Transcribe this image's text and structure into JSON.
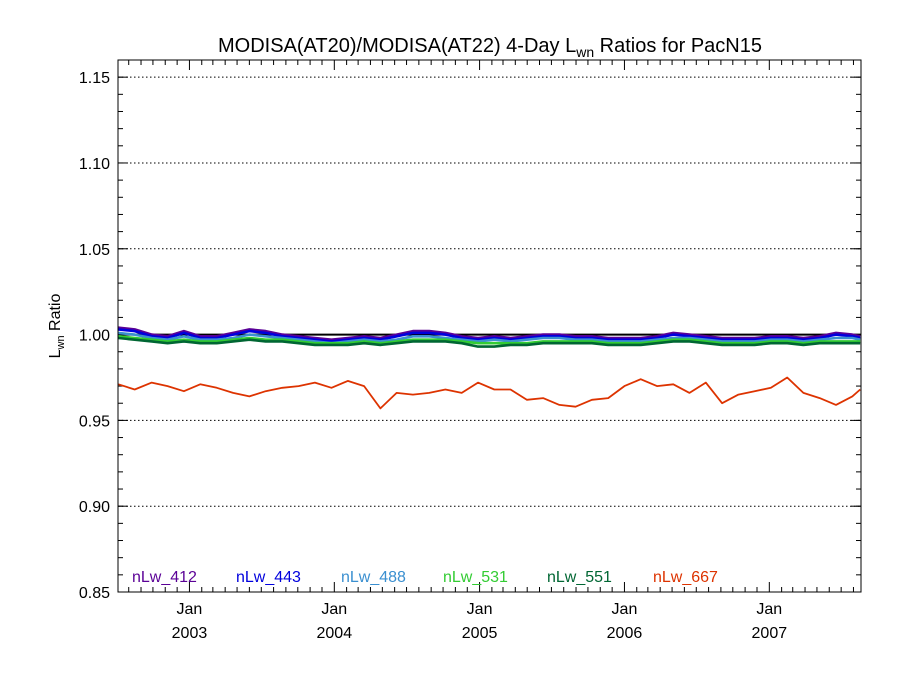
{
  "chart_data": {
    "type": "line",
    "title": {
      "main": "MODISA(AT20)/MODISA(AT22) 4-Day L",
      "sub": "wn",
      "rest": " Ratios for PacN15"
    },
    "ylabel": {
      "main": "L",
      "sub": "wn",
      "rest": " Ratio"
    },
    "ylim": [
      0.85,
      1.16
    ],
    "yticks": [
      {
        "value": 0.85,
        "label": "0.85"
      },
      {
        "value": 0.9,
        "label": "0.90"
      },
      {
        "value": 0.95,
        "label": "0.95"
      },
      {
        "value": 1.0,
        "label": "1.00"
      },
      {
        "value": 1.05,
        "label": "1.05"
      },
      {
        "value": 1.1,
        "label": "1.10"
      },
      {
        "value": 1.15,
        "label": "1.15"
      }
    ],
    "xlim": [
      "2002-07-05",
      "2007-08-20"
    ],
    "xticks": [
      {
        "date": "2003-01-01",
        "month": "Jan",
        "year": "2003"
      },
      {
        "date": "2004-01-01",
        "month": "Jan",
        "year": "2004"
      },
      {
        "date": "2005-01-01",
        "month": "Jan",
        "year": "2005"
      },
      {
        "date": "2006-01-01",
        "month": "Jan",
        "year": "2006"
      },
      {
        "date": "2007-01-01",
        "month": "Jan",
        "year": "2007"
      }
    ],
    "reference_line": 1.0,
    "grid": "dotted horizontal at major y ticks",
    "legend_position": "bottom",
    "x": [
      "2002-07-06",
      "2002-08-16",
      "2002-09-28",
      "2002-11-07",
      "2002-12-18",
      "2003-01-28",
      "2003-03-11",
      "2003-04-21",
      "2003-06-01",
      "2003-07-12",
      "2003-08-23",
      "2003-10-03",
      "2003-11-13",
      "2003-12-25",
      "2004-02-04",
      "2004-03-16",
      "2004-04-26",
      "2004-06-06",
      "2004-07-17",
      "2004-08-27",
      "2004-10-07",
      "2004-11-17",
      "2004-12-28",
      "2005-02-07",
      "2005-03-20",
      "2005-04-30",
      "2005-06-10",
      "2005-07-21",
      "2005-08-31",
      "2005-10-11",
      "2005-11-21",
      "2006-01-01",
      "2006-02-11",
      "2006-03-24",
      "2006-05-04",
      "2006-06-14",
      "2006-07-25",
      "2006-09-04",
      "2006-10-15",
      "2006-11-25",
      "2007-01-05",
      "2007-02-15",
      "2007-03-28",
      "2007-05-08",
      "2007-06-18",
      "2007-07-29",
      "2007-08-18"
    ],
    "series": [
      {
        "name": "nLw_412",
        "color": "#5a0096",
        "values": [
          1.004,
          1.003,
          1.0,
          0.999,
          1.002,
          0.999,
          0.999,
          1.001,
          1.003,
          1.002,
          1.0,
          0.999,
          0.998,
          0.997,
          0.998,
          0.999,
          0.998,
          1.0,
          1.002,
          1.002,
          1.001,
          0.999,
          0.998,
          0.999,
          0.998,
          0.999,
          1.0,
          1.0,
          0.999,
          0.999,
          0.998,
          0.998,
          0.998,
          0.999,
          1.001,
          1.0,
          0.999,
          0.998,
          0.998,
          0.998,
          0.999,
          0.999,
          0.998,
          0.999,
          1.001,
          1.0,
          0.999
        ]
      },
      {
        "name": "nLw_443",
        "color": "#0000dd",
        "values": [
          1.003,
          1.002,
          0.999,
          0.998,
          1.001,
          0.998,
          0.998,
          1.0,
          1.002,
          1.001,
          0.999,
          0.998,
          0.997,
          0.996,
          0.997,
          0.998,
          0.997,
          0.999,
          1.001,
          1.001,
          1.0,
          0.998,
          0.997,
          0.998,
          0.997,
          0.998,
          0.999,
          0.999,
          0.998,
          0.998,
          0.997,
          0.997,
          0.997,
          0.998,
          1.0,
          0.999,
          0.998,
          0.997,
          0.997,
          0.997,
          0.998,
          0.998,
          0.997,
          0.998,
          1.0,
          0.999,
          0.998
        ]
      },
      {
        "name": "nLw_488",
        "color": "#3a8fd0",
        "values": [
          1.001,
          1.0,
          0.998,
          0.997,
          0.999,
          0.997,
          0.997,
          0.998,
          1.0,
          0.999,
          0.998,
          0.997,
          0.996,
          0.995,
          0.996,
          0.997,
          0.996,
          0.997,
          0.999,
          0.999,
          0.998,
          0.997,
          0.996,
          0.997,
          0.996,
          0.997,
          0.998,
          0.998,
          0.997,
          0.997,
          0.996,
          0.996,
          0.996,
          0.997,
          0.998,
          0.998,
          0.997,
          0.996,
          0.996,
          0.996,
          0.997,
          0.997,
          0.996,
          0.997,
          0.998,
          0.998,
          0.997
        ]
      },
      {
        "name": "nLw_531",
        "color": "#33cc33",
        "values": [
          0.999,
          0.998,
          0.997,
          0.996,
          0.997,
          0.996,
          0.996,
          0.997,
          0.998,
          0.997,
          0.997,
          0.996,
          0.995,
          0.995,
          0.995,
          0.996,
          0.995,
          0.996,
          0.997,
          0.997,
          0.997,
          0.996,
          0.995,
          0.995,
          0.995,
          0.995,
          0.996,
          0.996,
          0.996,
          0.996,
          0.995,
          0.995,
          0.995,
          0.996,
          0.997,
          0.997,
          0.996,
          0.995,
          0.995,
          0.995,
          0.996,
          0.996,
          0.995,
          0.996,
          0.996,
          0.996,
          0.996
        ]
      },
      {
        "name": "nLw_551",
        "color": "#006633",
        "values": [
          0.998,
          0.997,
          0.996,
          0.995,
          0.996,
          0.995,
          0.995,
          0.996,
          0.997,
          0.996,
          0.996,
          0.995,
          0.994,
          0.994,
          0.994,
          0.995,
          0.994,
          0.995,
          0.996,
          0.996,
          0.996,
          0.995,
          0.993,
          0.993,
          0.994,
          0.994,
          0.995,
          0.995,
          0.995,
          0.995,
          0.994,
          0.994,
          0.994,
          0.995,
          0.996,
          0.996,
          0.995,
          0.994,
          0.994,
          0.994,
          0.995,
          0.995,
          0.994,
          0.995,
          0.995,
          0.995,
          0.995
        ]
      },
      {
        "name": "nLw_667",
        "color": "#dd3300",
        "values": [
          0.971,
          0.968,
          0.972,
          0.97,
          0.967,
          0.971,
          0.969,
          0.966,
          0.964,
          0.967,
          0.969,
          0.97,
          0.972,
          0.969,
          0.973,
          0.97,
          0.957,
          0.966,
          0.965,
          0.966,
          0.968,
          0.966,
          0.972,
          0.968,
          0.968,
          0.962,
          0.963,
          0.959,
          0.958,
          0.962,
          0.963,
          0.97,
          0.974,
          0.97,
          0.971,
          0.966,
          0.972,
          0.96,
          0.965,
          0.967,
          0.969,
          0.975,
          0.966,
          0.963,
          0.959,
          0.964,
          0.968
        ]
      }
    ]
  }
}
